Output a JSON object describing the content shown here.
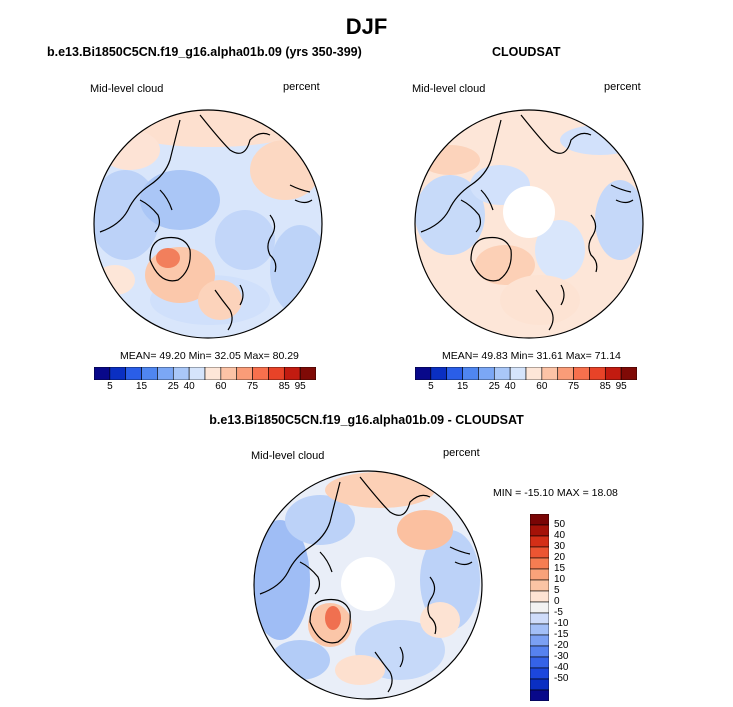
{
  "figure": {
    "title": "DJF",
    "panel1": {
      "title": "b.e13.Bi1850C5CN.f19_g16.alpha01b.09 (yrs 350-399)",
      "left_label": "Mid-level cloud",
      "right_label": "percent",
      "stats": "MEAN=  49.20  Min=  32.05  Max=  80.29"
    },
    "panel2": {
      "title": "CLOUDSAT",
      "left_label": "Mid-level cloud",
      "right_label": "percent",
      "stats": "MEAN=  49.83  Min=  31.61  Max=  71.14"
    },
    "panel3": {
      "title": "b.e13.Bi1850C5CN.f19_g16.alpha01b.09 - CLOUDSAT",
      "left_label": "Mid-level cloud",
      "right_label": "percent",
      "stats": "MIN = -15.10 MAX =  18.08"
    },
    "abs_colorbar": {
      "colors": [
        "#08088a",
        "#0a2fc2",
        "#2a5ee8",
        "#4f86f0",
        "#7ba7f5",
        "#a9c7f8",
        "#d5e4fb",
        "#fde6d8",
        "#fcc3a6",
        "#fa9c78",
        "#f7704d",
        "#e84328",
        "#c21b10",
        "#7f0a06"
      ],
      "labels": [
        "5",
        "15",
        "25",
        "40",
        "60",
        "75",
        "85",
        "95"
      ]
    },
    "diff_colorbar": {
      "colors": [
        "#08088a",
        "#0a2fc2",
        "#1c47dd",
        "#3563e8",
        "#5682ef",
        "#7ba0f3",
        "#a3bff7",
        "#cfdcfa",
        "#f2f2f2",
        "#fde3d3",
        "#fbc4a4",
        "#f9a27a",
        "#f67d52",
        "#ec5532",
        "#d42f17",
        "#a51208",
        "#7a0505"
      ],
      "labels": [
        "50",
        "40",
        "30",
        "20",
        "15",
        "10",
        "5",
        "0",
        "-5",
        "-10",
        "-15",
        "-20",
        "-30",
        "-40",
        "-50"
      ]
    }
  }
}
